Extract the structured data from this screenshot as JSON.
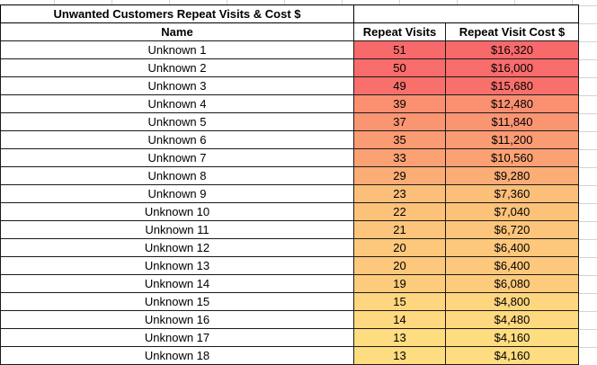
{
  "sheet": {
    "title": "Unwanted Customers Repeat Visits & Cost $",
    "headers": {
      "name": "Name",
      "visits": "Repeat Visits",
      "cost": "Repeat Visit Cost $"
    },
    "rows": [
      {
        "name": "Unknown 1",
        "visits": "51",
        "cost": "$16,320",
        "color": "#F8696B"
      },
      {
        "name": "Unknown 2",
        "visits": "50",
        "cost": "$16,000",
        "color": "#F86C6B"
      },
      {
        "name": "Unknown 3",
        "visits": "49",
        "cost": "$15,680",
        "color": "#F8706C"
      },
      {
        "name": "Unknown 4",
        "visits": "39",
        "cost": "$12,480",
        "color": "#FA8F71"
      },
      {
        "name": "Unknown 5",
        "visits": "37",
        "cost": "$11,840",
        "color": "#FA9572"
      },
      {
        "name": "Unknown 6",
        "visits": "35",
        "cost": "$11,200",
        "color": "#FA9B73"
      },
      {
        "name": "Unknown 7",
        "visits": "33",
        "cost": "$10,560",
        "color": "#FBA174"
      },
      {
        "name": "Unknown 8",
        "visits": "29",
        "cost": "$9,280",
        "color": "#FBAD76"
      },
      {
        "name": "Unknown 9",
        "visits": "23",
        "cost": "$7,360",
        "color": "#FCBF7A"
      },
      {
        "name": "Unknown 10",
        "visits": "22",
        "cost": "$7,040",
        "color": "#FCC27A"
      },
      {
        "name": "Unknown 11",
        "visits": "21",
        "cost": "$6,720",
        "color": "#FCC57B"
      },
      {
        "name": "Unknown 12",
        "visits": "20",
        "cost": "$6,400",
        "color": "#FDC87C"
      },
      {
        "name": "Unknown 13",
        "visits": "20",
        "cost": "$6,400",
        "color": "#FDC87C"
      },
      {
        "name": "Unknown 14",
        "visits": "19",
        "cost": "$6,080",
        "color": "#FDCB7C"
      },
      {
        "name": "Unknown 15",
        "visits": "15",
        "cost": "$4,800",
        "color": "#FED67F"
      },
      {
        "name": "Unknown 16",
        "visits": "14",
        "cost": "$4,480",
        "color": "#FED97F"
      },
      {
        "name": "Unknown 17",
        "visits": "13",
        "cost": "$4,160",
        "color": "#FEDC80"
      },
      {
        "name": "Unknown 18",
        "visits": "13",
        "cost": "$4,160",
        "color": "#FEDC80"
      }
    ]
  }
}
